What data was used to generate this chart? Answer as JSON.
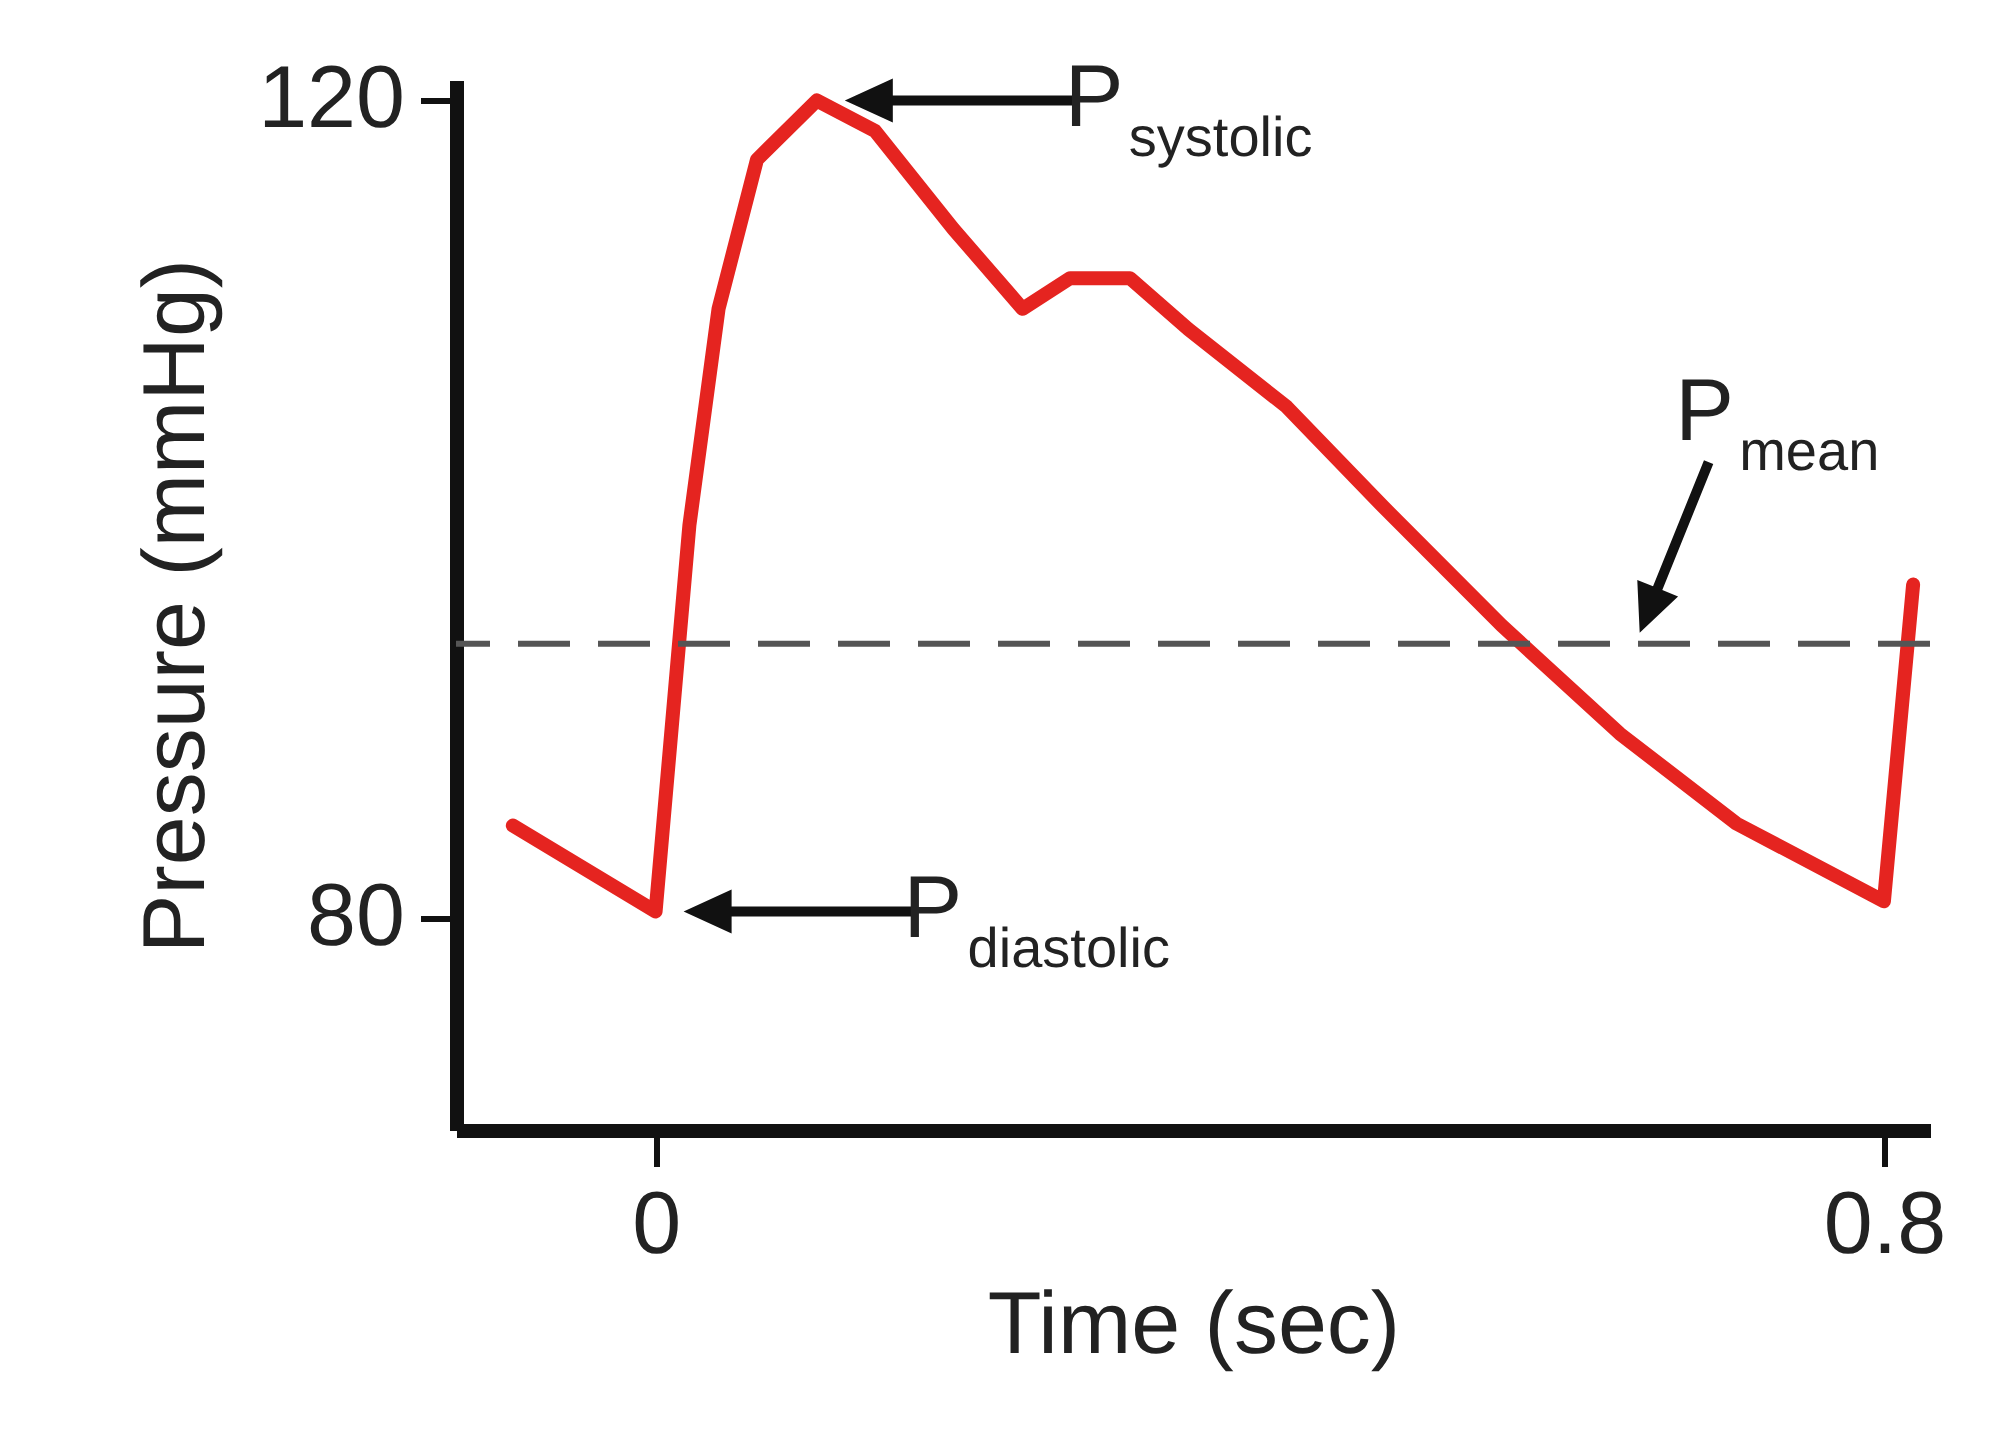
{
  "chart_data": {
    "type": "line",
    "xlabel": "Time (sec)",
    "ylabel": "Pressure (mmHg)",
    "x": [
      -0.093,
      0,
      0.022,
      0.041,
      0.066,
      0.105,
      0.143,
      0.194,
      0.239,
      0.27,
      0.309,
      0.347,
      0.411,
      0.474,
      0.551,
      0.628,
      0.704,
      0.8,
      0.819
    ],
    "series": [
      {
        "color": "#e52420",
        "values": [
          84.5,
          80.3,
          99.2,
          109.8,
          117.1,
          120,
          118.5,
          113.7,
          109.8,
          111.3,
          111.3,
          108.8,
          105,
          100.1,
          94.3,
          89,
          84.6,
          80.8,
          96.3
        ]
      }
    ],
    "xlim": [
      -0.13,
      0.83
    ],
    "ylim": [
      69.6,
      121
    ],
    "xticks": [
      0,
      0.8
    ],
    "yticks": [
      80,
      120
    ],
    "grid": false,
    "ref_lines": [
      {
        "axis": "y",
        "value": 93.4,
        "label": "P$_{mean}$",
        "color": "#555555",
        "line_style": "dashed"
      }
    ],
    "annotations": [
      {
        "text": "P$_{systolic}$",
        "x": 0.105,
        "y": 120
      },
      {
        "text": "P$_{diastolic}$",
        "x": 0,
        "y": 80.3
      }
    ]
  }
}
